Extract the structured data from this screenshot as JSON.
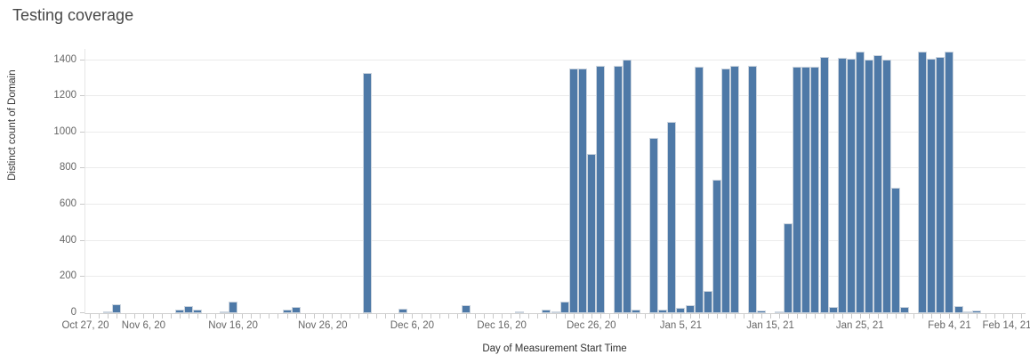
{
  "title": "Testing coverage",
  "colors": {
    "bar": "#4e79a7",
    "bar_border": "#ccd5df",
    "grid": "#ebebeb",
    "axis_line": "#cfcfcf",
    "tick_mark": "#c9c9c9",
    "tick_label": "#666666",
    "axis_title": "#313131",
    "title": "#474747"
  },
  "chart_data": {
    "type": "bar",
    "title": "Testing coverage",
    "xlabel": "Day of Measurement Start Time",
    "ylabel": "Distinct count of Domain",
    "y_ticks": [
      0,
      200,
      400,
      600,
      800,
      1000,
      1200,
      1400
    ],
    "ylim": [
      0,
      1462
    ],
    "grid": "horizontal",
    "x_domain": {
      "start_date": "Oct 31, 20",
      "days": 105
    },
    "x_ticks": [
      {
        "label": "Oct 27, 20",
        "day": -4
      },
      {
        "label": "Nov 6, 20",
        "day": 6
      },
      {
        "label": "Nov 16, 20",
        "day": 16
      },
      {
        "label": "Nov 26, 20",
        "day": 26
      },
      {
        "label": "Dec 6, 20",
        "day": 36
      },
      {
        "label": "Dec 16, 20",
        "day": 46
      },
      {
        "label": "Dec 26, 20",
        "day": 56
      },
      {
        "label": "Jan 5, 21",
        "day": 66
      },
      {
        "label": "Jan 15, 21",
        "day": 76
      },
      {
        "label": "Jan 25, 21",
        "day": 86
      },
      {
        "label": "Feb 4, 21",
        "day": 96
      },
      {
        "label": "Feb 14, 21",
        "day": 106
      }
    ],
    "points": [
      {
        "date": "Nov 2, 20",
        "day": 2,
        "value": 8
      },
      {
        "date": "Nov 3, 20",
        "day": 3,
        "value": 50
      },
      {
        "date": "Nov 10, 20",
        "day": 10,
        "value": 22
      },
      {
        "date": "Nov 11, 20",
        "day": 11,
        "value": 40
      },
      {
        "date": "Nov 12, 20",
        "day": 12,
        "value": 22
      },
      {
        "date": "Nov 15, 20",
        "day": 15,
        "value": 6
      },
      {
        "date": "Nov 16, 20",
        "day": 16,
        "value": 62
      },
      {
        "date": "Nov 22, 20",
        "day": 22,
        "value": 18
      },
      {
        "date": "Nov 23, 20",
        "day": 23,
        "value": 32
      },
      {
        "date": "Dec 1, 20",
        "day": 31,
        "value": 1330
      },
      {
        "date": "Dec 5, 20",
        "day": 35,
        "value": 23
      },
      {
        "date": "Dec 12, 20",
        "day": 42,
        "value": 43
      },
      {
        "date": "Dec 18, 20",
        "day": 48,
        "value": 8
      },
      {
        "date": "Dec 21, 20",
        "day": 51,
        "value": 18
      },
      {
        "date": "Dec 22, 20",
        "day": 52,
        "value": 12
      },
      {
        "date": "Dec 23, 20",
        "day": 53,
        "value": 63
      },
      {
        "date": "Dec 24, 20",
        "day": 54,
        "value": 1355
      },
      {
        "date": "Dec 25, 20",
        "day": 55,
        "value": 1355
      },
      {
        "date": "Dec 26, 20",
        "day": 56,
        "value": 880
      },
      {
        "date": "Dec 27, 20",
        "day": 57,
        "value": 1370
      },
      {
        "date": "Dec 29, 20",
        "day": 59,
        "value": 1370
      },
      {
        "date": "Dec 30, 20",
        "day": 60,
        "value": 1405
      },
      {
        "date": "Dec 31, 20",
        "day": 61,
        "value": 20
      },
      {
        "date": "Jan 2, 21",
        "day": 63,
        "value": 970
      },
      {
        "date": "Jan 3, 21",
        "day": 64,
        "value": 20
      },
      {
        "date": "Jan 4, 21",
        "day": 65,
        "value": 1060
      },
      {
        "date": "Jan 5, 21",
        "day": 66,
        "value": 28
      },
      {
        "date": "Jan 6, 21",
        "day": 67,
        "value": 45
      },
      {
        "date": "Jan 7, 21",
        "day": 68,
        "value": 1365
      },
      {
        "date": "Jan 8, 21",
        "day": 69,
        "value": 125
      },
      {
        "date": "Jan 9, 21",
        "day": 70,
        "value": 740
      },
      {
        "date": "Jan 10, 21",
        "day": 71,
        "value": 1355
      },
      {
        "date": "Jan 11, 21",
        "day": 72,
        "value": 1370
      },
      {
        "date": "Jan 13, 21",
        "day": 74,
        "value": 1370
      },
      {
        "date": "Jan 14, 21",
        "day": 75,
        "value": 15
      },
      {
        "date": "Jan 16, 21",
        "day": 77,
        "value": 5
      },
      {
        "date": "Jan 17, 21",
        "day": 78,
        "value": 495
      },
      {
        "date": "Jan 18, 21",
        "day": 79,
        "value": 1365
      },
      {
        "date": "Jan 19, 21",
        "day": 80,
        "value": 1365
      },
      {
        "date": "Jan 20, 21",
        "day": 81,
        "value": 1365
      },
      {
        "date": "Jan 21, 21",
        "day": 82,
        "value": 1420
      },
      {
        "date": "Jan 22, 21",
        "day": 83,
        "value": 35
      },
      {
        "date": "Jan 23, 21",
        "day": 84,
        "value": 1415
      },
      {
        "date": "Jan 24, 21",
        "day": 85,
        "value": 1410
      },
      {
        "date": "Jan 25, 21",
        "day": 86,
        "value": 1445
      },
      {
        "date": "Jan 26, 21",
        "day": 87,
        "value": 1405
      },
      {
        "date": "Jan 27, 21",
        "day": 88,
        "value": 1430
      },
      {
        "date": "Jan 28, 21",
        "day": 89,
        "value": 1405
      },
      {
        "date": "Jan 29, 21",
        "day": 90,
        "value": 695
      },
      {
        "date": "Jan 30, 21",
        "day": 91,
        "value": 35
      },
      {
        "date": "Feb 1, 21",
        "day": 93,
        "value": 1445
      },
      {
        "date": "Feb 2, 21",
        "day": 94,
        "value": 1410
      },
      {
        "date": "Feb 3, 21",
        "day": 95,
        "value": 1420
      },
      {
        "date": "Feb 4, 21",
        "day": 96,
        "value": 1445
      },
      {
        "date": "Feb 5, 21",
        "day": 97,
        "value": 37
      },
      {
        "date": "Feb 6, 21",
        "day": 98,
        "value": 11
      },
      {
        "date": "Feb 7, 21",
        "day": 99,
        "value": 15
      }
    ]
  }
}
